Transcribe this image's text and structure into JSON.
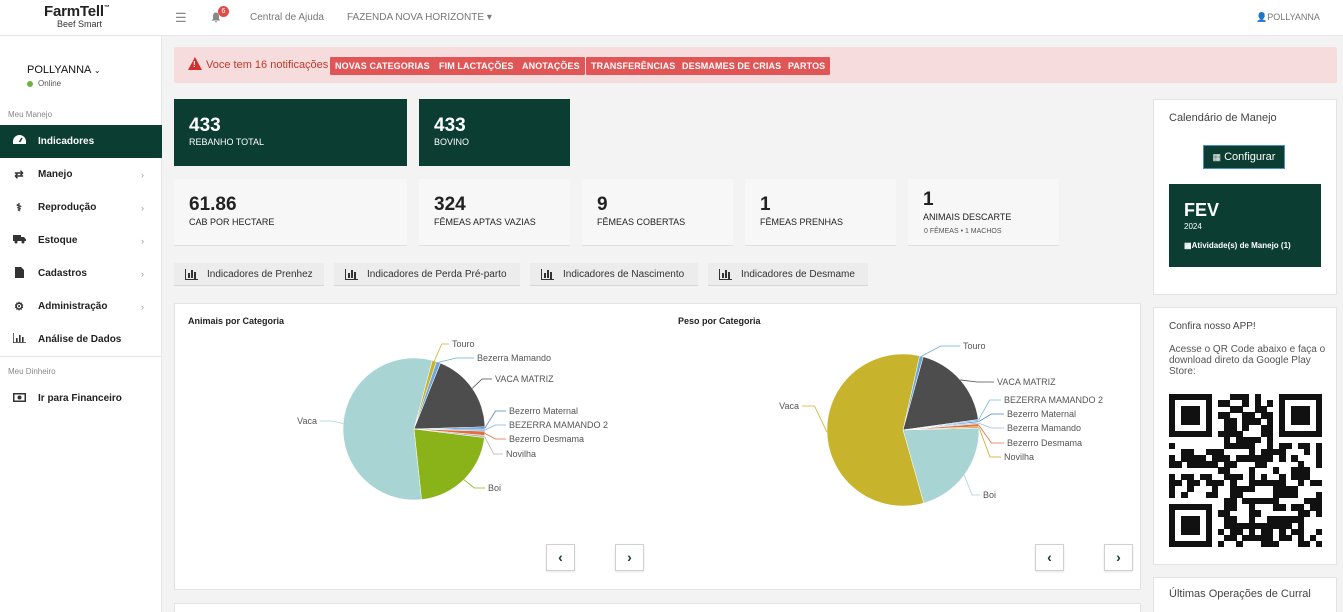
{
  "brand": {
    "name": "FarmTell",
    "tm": "™",
    "sub": "Beef Smart"
  },
  "topbar": {
    "notif_count": "6",
    "help": "Central de Ajuda",
    "farm": "FAZENDA NOVA HORIZONTE",
    "user": "POLLYANNA"
  },
  "sidebar": {
    "user": "POLLYANNA",
    "status": "Online",
    "section1": "Meu Manejo",
    "items": [
      {
        "label": "Indicadores",
        "icon": "dashboard-icon"
      },
      {
        "label": "Manejo",
        "icon": "exchange-icon"
      },
      {
        "label": "Reprodução",
        "icon": "stethoscope-icon"
      },
      {
        "label": "Estoque",
        "icon": "truck-icon"
      },
      {
        "label": "Cadastros",
        "icon": "file-icon"
      },
      {
        "label": "Administração",
        "icon": "cogs-icon"
      },
      {
        "label": "Análise de Dados",
        "icon": "bar-chart-icon"
      }
    ],
    "section2": "Meu Dinheiro",
    "finance": "Ir para Financeiro"
  },
  "notification": {
    "text": "Voce tem 16 notificações",
    "tags": [
      "NOVAS CATEGORIAS",
      "FIM LACTAÇÕES",
      "ANOTAÇÕES",
      "TRANSFERÊNCIAS",
      "DESMAMES DE CRIAS",
      "PARTOS"
    ]
  },
  "stats": {
    "rebanho": {
      "value": "433",
      "label": "REBANHO TOTAL"
    },
    "bovino": {
      "value": "433",
      "label": "BOVINO"
    },
    "cab": {
      "value": "61.86",
      "label": "CAB POR HECTARE"
    },
    "femeas_vazias": {
      "value": "324",
      "label": "FÊMEAS APTAS VAZIAS"
    },
    "femeas_cobertas": {
      "value": "9",
      "label": "FÊMEAS COBERTAS"
    },
    "femeas_prenhas": {
      "value": "1",
      "label": "FÊMEAS PRENHAS"
    },
    "descarte": {
      "value": "1",
      "label": "ANIMAIS DESCARTE",
      "sub": "0 FÊMEAS • 1 MACHOS"
    }
  },
  "indicator_buttons": [
    "Indicadores de Prenhez",
    "Indicadores de Perda Pré-parto",
    "Indicadores de Nascimento",
    "Indicadores de Desmame"
  ],
  "chart_data": [
    {
      "type": "pie",
      "title": "Animais por Categoria",
      "labels": [
        "Touro",
        "Bezerra Mamando",
        "VACA MATRIZ",
        "Bezerro Maternal",
        "BEZERRA MAMANDO 2",
        "Bezerro Desmama",
        "Novilha",
        "Boi",
        "Vaca"
      ],
      "values": [
        1,
        1,
        19,
        0.5,
        0.5,
        1,
        0.5,
        22,
        57.5
      ],
      "colors": [
        "#c8b32c",
        "#6fa8dc",
        "#4d4d4d",
        "#4a86c5",
        "#7cb5ec",
        "#e07040",
        "#b4b4b4",
        "#8ab31a",
        "#a8d4d4"
      ]
    },
    {
      "type": "pie",
      "title": "Peso por Categoria",
      "labels": [
        "Touro",
        "VACA MATRIZ",
        "BEZERRA MAMANDO 2",
        "Bezerro Maternal",
        "Bezerra Mamando",
        "Bezerro Desmama",
        "Novilha",
        "Boi",
        "Vaca"
      ],
      "values": [
        0.8,
        18.5,
        0.3,
        0.3,
        0.3,
        0.6,
        0.3,
        21,
        57.9
      ],
      "colors": [
        "#6fa8dc",
        "#4d4d4d",
        "#7cb5ec",
        "#4a86c5",
        "#9bc0e0",
        "#e07040",
        "#d4a017",
        "#a8d4d4",
        "#c8b32c"
      ]
    }
  ],
  "calendar": {
    "title": "Calendário de Manejo",
    "button": "Configurar",
    "month": "FEV",
    "year": "2024",
    "activities": "Atividade(s) de Manejo (1)"
  },
  "app": {
    "title": "Confira nosso APP!",
    "text": "Acesse o QR Code abaixo e faça o download direto da Google Play Store:"
  },
  "last_ops": {
    "title": "Últimas Operações de Curral"
  }
}
